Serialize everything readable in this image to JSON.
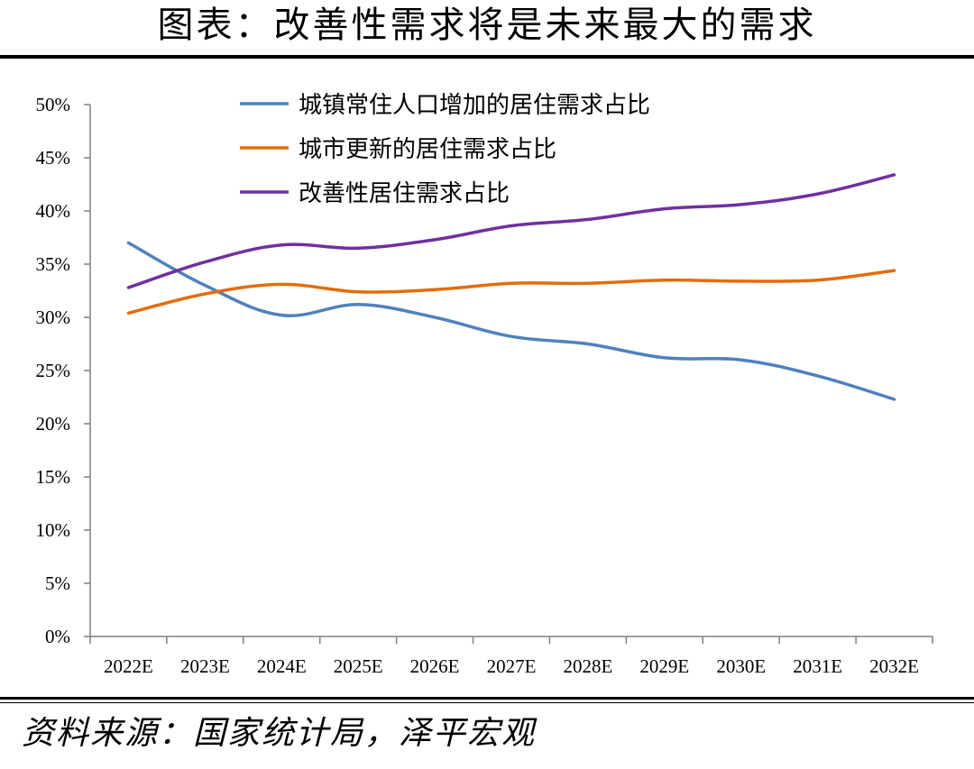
{
  "header": {
    "title": "图表：改善性需求将是未来最大的需求"
  },
  "footer": {
    "source": "资料来源：国家统计局，泽平宏观"
  },
  "chart_data": {
    "type": "line",
    "categories": [
      "2022E",
      "2023E",
      "2024E",
      "2025E",
      "2026E",
      "2027E",
      "2028E",
      "2029E",
      "2030E",
      "2031E",
      "2032E"
    ],
    "y_ticks": [
      "0%",
      "5%",
      "10%",
      "15%",
      "20%",
      "25%",
      "30%",
      "35%",
      "40%",
      "45%",
      "50%"
    ],
    "ylim": [
      0,
      50
    ],
    "y_unit": "%",
    "smooth": true,
    "grid": false,
    "legend_position": "top",
    "series": [
      {
        "name": "城镇常住人口增加的居住需求占比",
        "color": "#4F81BD",
        "values": [
          37.0,
          33.0,
          30.2,
          31.2,
          30.0,
          28.2,
          27.5,
          26.2,
          26.0,
          24.5,
          22.3
        ]
      },
      {
        "name": "城市更新的居住需求占比",
        "color": "#E36C0A",
        "values": [
          30.4,
          32.2,
          33.1,
          32.4,
          32.6,
          33.2,
          33.2,
          33.5,
          33.4,
          33.5,
          34.4
        ]
      },
      {
        "name": "改善性居住需求占比",
        "color": "#7030A0",
        "values": [
          32.8,
          35.2,
          36.8,
          36.5,
          37.3,
          38.6,
          39.2,
          40.2,
          40.6,
          41.6,
          43.4
        ]
      }
    ]
  }
}
